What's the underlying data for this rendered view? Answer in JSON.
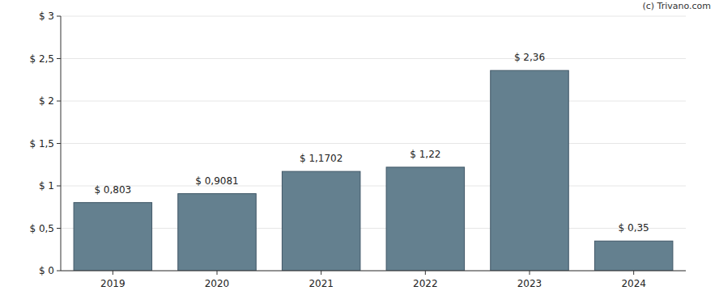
{
  "chart_data": {
    "type": "bar",
    "annotations": [
      "(c) Trivano.com"
    ],
    "categories": [
      "2019",
      "2020",
      "2021",
      "2022",
      "2023",
      "2024"
    ],
    "values": [
      0.803,
      0.9081,
      1.1702,
      1.22,
      2.36,
      0.35
    ],
    "value_labels": [
      "$ 0,803",
      "$ 0,9081",
      "$ 1,1702",
      "$ 1,22",
      "$ 2,36",
      "$ 0,35"
    ],
    "color": "#64808f",
    "ylim": [
      0,
      3
    ],
    "yticks": [
      {
        "value": 0,
        "label": "$ 0"
      },
      {
        "value": 0.5,
        "label": "$ 0,5"
      },
      {
        "value": 1,
        "label": "$ 1"
      },
      {
        "value": 1.5,
        "label": "$ 1,5"
      },
      {
        "value": 2,
        "label": "$ 2"
      },
      {
        "value": 2.5,
        "label": "$ 2,5"
      },
      {
        "value": 3,
        "label": "$ 3"
      }
    ],
    "grid": true,
    "data_labels": true
  }
}
